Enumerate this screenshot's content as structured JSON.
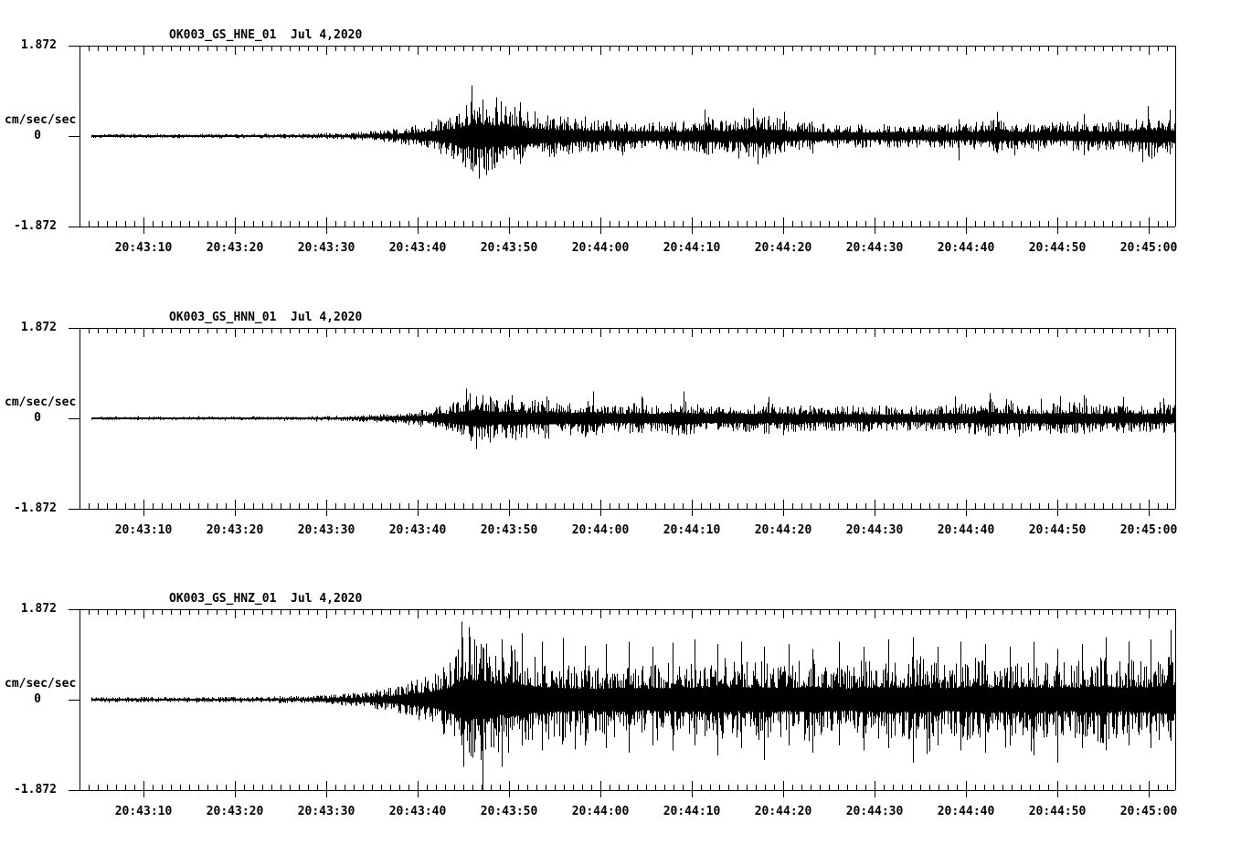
{
  "page": {
    "background": "#ffffff",
    "trace_color": "#000000",
    "kind": "seismogram-display"
  },
  "time_axis": {
    "labels": [
      "20:43:10",
      "20:43:20",
      "20:43:30",
      "20:43:40",
      "20:43:50",
      "20:44:00",
      "20:44:10",
      "20:44:20",
      "20:44:30",
      "20:44:40",
      "20:44:50",
      "20:45:00"
    ],
    "minor_tick_interval_sec": 1,
    "major_tick_interval_sec": 10,
    "first_major_tick_offset_sec": 7,
    "window_duration_sec": 120
  },
  "chart_data": [
    {
      "type": "line",
      "title": "OK003_GS_HNE_01  Jul 4,2020",
      "channel": "HNE",
      "date_label": "Jul 4,2020",
      "ylabel": "cm/sec/sec",
      "ylim": [
        -1.872,
        1.872
      ],
      "ytick_labels": [
        "1.872",
        "0",
        "-1.872"
      ],
      "xtick_labels": [
        "20:43:10",
        "20:43:20",
        "20:43:30",
        "20:43:40",
        "20:43:50",
        "20:44:00",
        "20:44:10",
        "20:44:20",
        "20:44:30",
        "20:44:40",
        "20:44:50",
        "20:45:00"
      ],
      "seed": 101,
      "envelope": [
        [
          0,
          0.045
        ],
        [
          12,
          0.045
        ],
        [
          22,
          0.05
        ],
        [
          27,
          0.06
        ],
        [
          30,
          0.08
        ],
        [
          33,
          0.12
        ],
        [
          35,
          0.17
        ],
        [
          37,
          0.24
        ],
        [
          39,
          0.34
        ],
        [
          41,
          0.5
        ],
        [
          42,
          0.65
        ],
        [
          43,
          0.8
        ],
        [
          44,
          0.78
        ],
        [
          45,
          0.7
        ],
        [
          46,
          0.73
        ],
        [
          47.5,
          0.62
        ],
        [
          49,
          0.55
        ],
        [
          51,
          0.46
        ],
        [
          53,
          0.4
        ],
        [
          56,
          0.36
        ],
        [
          59,
          0.33
        ],
        [
          62,
          0.3
        ],
        [
          65,
          0.3
        ],
        [
          67.5,
          0.36
        ],
        [
          69,
          0.42
        ],
        [
          71,
          0.33
        ],
        [
          73,
          0.44
        ],
        [
          75,
          0.46
        ],
        [
          77,
          0.34
        ],
        [
          79,
          0.28
        ],
        [
          82,
          0.26
        ],
        [
          86,
          0.25
        ],
        [
          90,
          0.25
        ],
        [
          94,
          0.27
        ],
        [
          97,
          0.26
        ],
        [
          100,
          0.36
        ],
        [
          102,
          0.3
        ],
        [
          105,
          0.27
        ],
        [
          108,
          0.3
        ],
        [
          111,
          0.32
        ],
        [
          114,
          0.3
        ],
        [
          116.5,
          0.45
        ],
        [
          118,
          0.42
        ],
        [
          120,
          0.38
        ]
      ],
      "spikes": [
        [
          42.9,
          1.05,
          -0.55
        ],
        [
          43.7,
          0.6,
          -0.88
        ],
        [
          44.5,
          0.55,
          -0.8
        ],
        [
          45.6,
          0.8,
          -0.55
        ],
        [
          48.2,
          0.7,
          -0.5
        ],
        [
          68.4,
          0.55,
          -0.35
        ],
        [
          73.7,
          0.58,
          -0.4
        ],
        [
          77.1,
          0.5,
          -0.32
        ],
        [
          96.2,
          0.35,
          -0.5
        ],
        [
          100.4,
          0.5,
          -0.35
        ],
        [
          109.9,
          0.45,
          -0.4
        ],
        [
          116.9,
          0.62,
          -0.4
        ],
        [
          119.3,
          0.55,
          -0.38
        ]
      ]
    },
    {
      "type": "line",
      "title": "OK003_GS_HNN_01  Jul 4,2020",
      "channel": "HNN",
      "date_label": "Jul 4,2020",
      "ylabel": "cm/sec/sec",
      "ylim": [
        -1.872,
        1.872
      ],
      "ytick_labels": [
        "1.872",
        "0",
        "-1.872"
      ],
      "xtick_labels": [
        "20:43:10",
        "20:43:20",
        "20:43:30",
        "20:43:40",
        "20:43:50",
        "20:44:00",
        "20:44:10",
        "20:44:20",
        "20:44:30",
        "20:44:40",
        "20:44:50",
        "20:45:00"
      ],
      "seed": 202,
      "envelope": [
        [
          0,
          0.035
        ],
        [
          12,
          0.035
        ],
        [
          22,
          0.04
        ],
        [
          27,
          0.05
        ],
        [
          30,
          0.065
        ],
        [
          33,
          0.09
        ],
        [
          35,
          0.12
        ],
        [
          37,
          0.16
        ],
        [
          39,
          0.24
        ],
        [
          41,
          0.36
        ],
        [
          42.5,
          0.5
        ],
        [
          43.5,
          0.52
        ],
        [
          44.5,
          0.46
        ],
        [
          46,
          0.42
        ],
        [
          47.5,
          0.45
        ],
        [
          49,
          0.36
        ],
        [
          51,
          0.42
        ],
        [
          53,
          0.33
        ],
        [
          55.5,
          0.42
        ],
        [
          57,
          0.35
        ],
        [
          59,
          0.3
        ],
        [
          61,
          0.33
        ],
        [
          63,
          0.3
        ],
        [
          65.5,
          0.42
        ],
        [
          67,
          0.32
        ],
        [
          69,
          0.3
        ],
        [
          71,
          0.33
        ],
        [
          73,
          0.3
        ],
        [
          75,
          0.33
        ],
        [
          77,
          0.3
        ],
        [
          80,
          0.27
        ],
        [
          83,
          0.27
        ],
        [
          86,
          0.28
        ],
        [
          89,
          0.26
        ],
        [
          92,
          0.26
        ],
        [
          95,
          0.3
        ],
        [
          98,
          0.33
        ],
        [
          100,
          0.38
        ],
        [
          102,
          0.32
        ],
        [
          104,
          0.3
        ],
        [
          107,
          0.35
        ],
        [
          109,
          0.33
        ],
        [
          111,
          0.3
        ],
        [
          113,
          0.32
        ],
        [
          115,
          0.3
        ],
        [
          117,
          0.28
        ],
        [
          120,
          0.3
        ]
      ],
      "spikes": [
        [
          42.7,
          0.52,
          -0.35
        ],
        [
          43.4,
          0.38,
          -0.63
        ],
        [
          44.9,
          0.45,
          -0.5
        ],
        [
          47.3,
          0.48,
          -0.42
        ],
        [
          51.1,
          0.45,
          -0.3
        ],
        [
          56.2,
          0.56,
          -0.28
        ],
        [
          61.5,
          0.45,
          -0.3
        ],
        [
          66.1,
          0.56,
          -0.32
        ],
        [
          75.4,
          0.44,
          -0.32
        ],
        [
          95.8,
          0.45,
          -0.3
        ],
        [
          99.6,
          0.52,
          -0.36
        ],
        [
          107.3,
          0.46,
          -0.3
        ],
        [
          109.9,
          0.48,
          -0.32
        ],
        [
          114.2,
          0.44,
          -0.3
        ],
        [
          118.6,
          0.42,
          -0.3
        ]
      ]
    },
    {
      "type": "line",
      "title": "OK003_GS_HNZ_01  Jul 4,2020",
      "channel": "HNZ",
      "date_label": "Jul 4,2020",
      "ylabel": "cm/sec/sec",
      "ylim": [
        -1.872,
        1.872
      ],
      "ytick_labels": [
        "1.872",
        "0",
        "-1.872"
      ],
      "xtick_labels": [
        "20:43:10",
        "20:43:20",
        "20:43:30",
        "20:43:40",
        "20:43:50",
        "20:44:00",
        "20:44:10",
        "20:44:20",
        "20:44:30",
        "20:44:40",
        "20:44:50",
        "20:45:00"
      ],
      "seed": 303,
      "envelope": [
        [
          0,
          0.055
        ],
        [
          12,
          0.055
        ],
        [
          20,
          0.06
        ],
        [
          25,
          0.08
        ],
        [
          28,
          0.11
        ],
        [
          31,
          0.16
        ],
        [
          33,
          0.22
        ],
        [
          35,
          0.3
        ],
        [
          37,
          0.42
        ],
        [
          39,
          0.6
        ],
        [
          40.5,
          0.85
        ],
        [
          41.5,
          1.2
        ],
        [
          42.3,
          1.45
        ],
        [
          43,
          1.3
        ],
        [
          44,
          1.35
        ],
        [
          45,
          1.15
        ],
        [
          46,
          1.05
        ],
        [
          47.5,
          1.15
        ],
        [
          48.5,
          1.0
        ],
        [
          50,
          0.9
        ],
        [
          52,
          0.82
        ],
        [
          54,
          0.78
        ],
        [
          56,
          0.72
        ],
        [
          58,
          0.78
        ],
        [
          60,
          0.82
        ],
        [
          62,
          0.72
        ],
        [
          64,
          0.78
        ],
        [
          66,
          0.85
        ],
        [
          68,
          0.8
        ],
        [
          70,
          0.9
        ],
        [
          72,
          0.78
        ],
        [
          74,
          0.85
        ],
        [
          76,
          0.82
        ],
        [
          78,
          0.78
        ],
        [
          80,
          0.88
        ],
        [
          82,
          0.8
        ],
        [
          84,
          0.75
        ],
        [
          86,
          0.82
        ],
        [
          88,
          0.85
        ],
        [
          90,
          0.8
        ],
        [
          92,
          0.9
        ],
        [
          94,
          0.78
        ],
        [
          96,
          0.8
        ],
        [
          98,
          0.88
        ],
        [
          100,
          0.82
        ],
        [
          102,
          0.78
        ],
        [
          104,
          0.85
        ],
        [
          106,
          0.8
        ],
        [
          108,
          0.78
        ],
        [
          110,
          0.85
        ],
        [
          112,
          0.9
        ],
        [
          114,
          0.8
        ],
        [
          116,
          0.85
        ],
        [
          118,
          0.88
        ],
        [
          119.5,
          1.0
        ],
        [
          120,
          0.95
        ]
      ],
      "spikes": [
        [
          41.8,
          1.62,
          -0.95
        ],
        [
          42.6,
          1.5,
          -1.1
        ],
        [
          43.9,
          1.15,
          -1.25
        ],
        [
          44.1,
          0.95,
          -1.9
        ],
        [
          46.2,
          1.25,
          -1.35
        ],
        [
          48.4,
          1.38,
          -0.95
        ],
        [
          50.6,
          1.2,
          -1.05
        ],
        [
          52.9,
          1.28,
          -0.85
        ],
        [
          55.3,
          1.12,
          -0.95
        ],
        [
          57.6,
          1.15,
          -1.0
        ],
        [
          60.1,
          1.2,
          -1.1
        ],
        [
          62.7,
          1.1,
          -0.95
        ],
        [
          64.9,
          1.18,
          -1.05
        ],
        [
          67.3,
          1.25,
          -0.95
        ],
        [
          69.8,
          1.15,
          -1.15
        ],
        [
          72.4,
          1.2,
          -1.0
        ],
        [
          74.9,
          1.1,
          -1.25
        ],
        [
          77.6,
          1.15,
          -0.95
        ],
        [
          80.2,
          1.05,
          -1.1
        ],
        [
          83.1,
          1.2,
          -0.95
        ],
        [
          85.8,
          1.1,
          -1.05
        ],
        [
          88.5,
          1.25,
          -1.0
        ],
        [
          91.2,
          1.3,
          -1.3
        ],
        [
          93.9,
          1.1,
          -0.95
        ],
        [
          96.4,
          1.2,
          -1.05
        ],
        [
          99.1,
          1.15,
          -1.1
        ],
        [
          101.8,
          1.1,
          -0.95
        ],
        [
          104.4,
          1.2,
          -1.15
        ],
        [
          107.0,
          1.05,
          -1.3
        ],
        [
          109.7,
          1.15,
          -1.0
        ],
        [
          112.3,
          1.3,
          -1.05
        ],
        [
          114.8,
          1.2,
          -0.95
        ],
        [
          117.2,
          1.25,
          -1.0
        ],
        [
          119.4,
          1.45,
          -0.85
        ]
      ]
    }
  ]
}
